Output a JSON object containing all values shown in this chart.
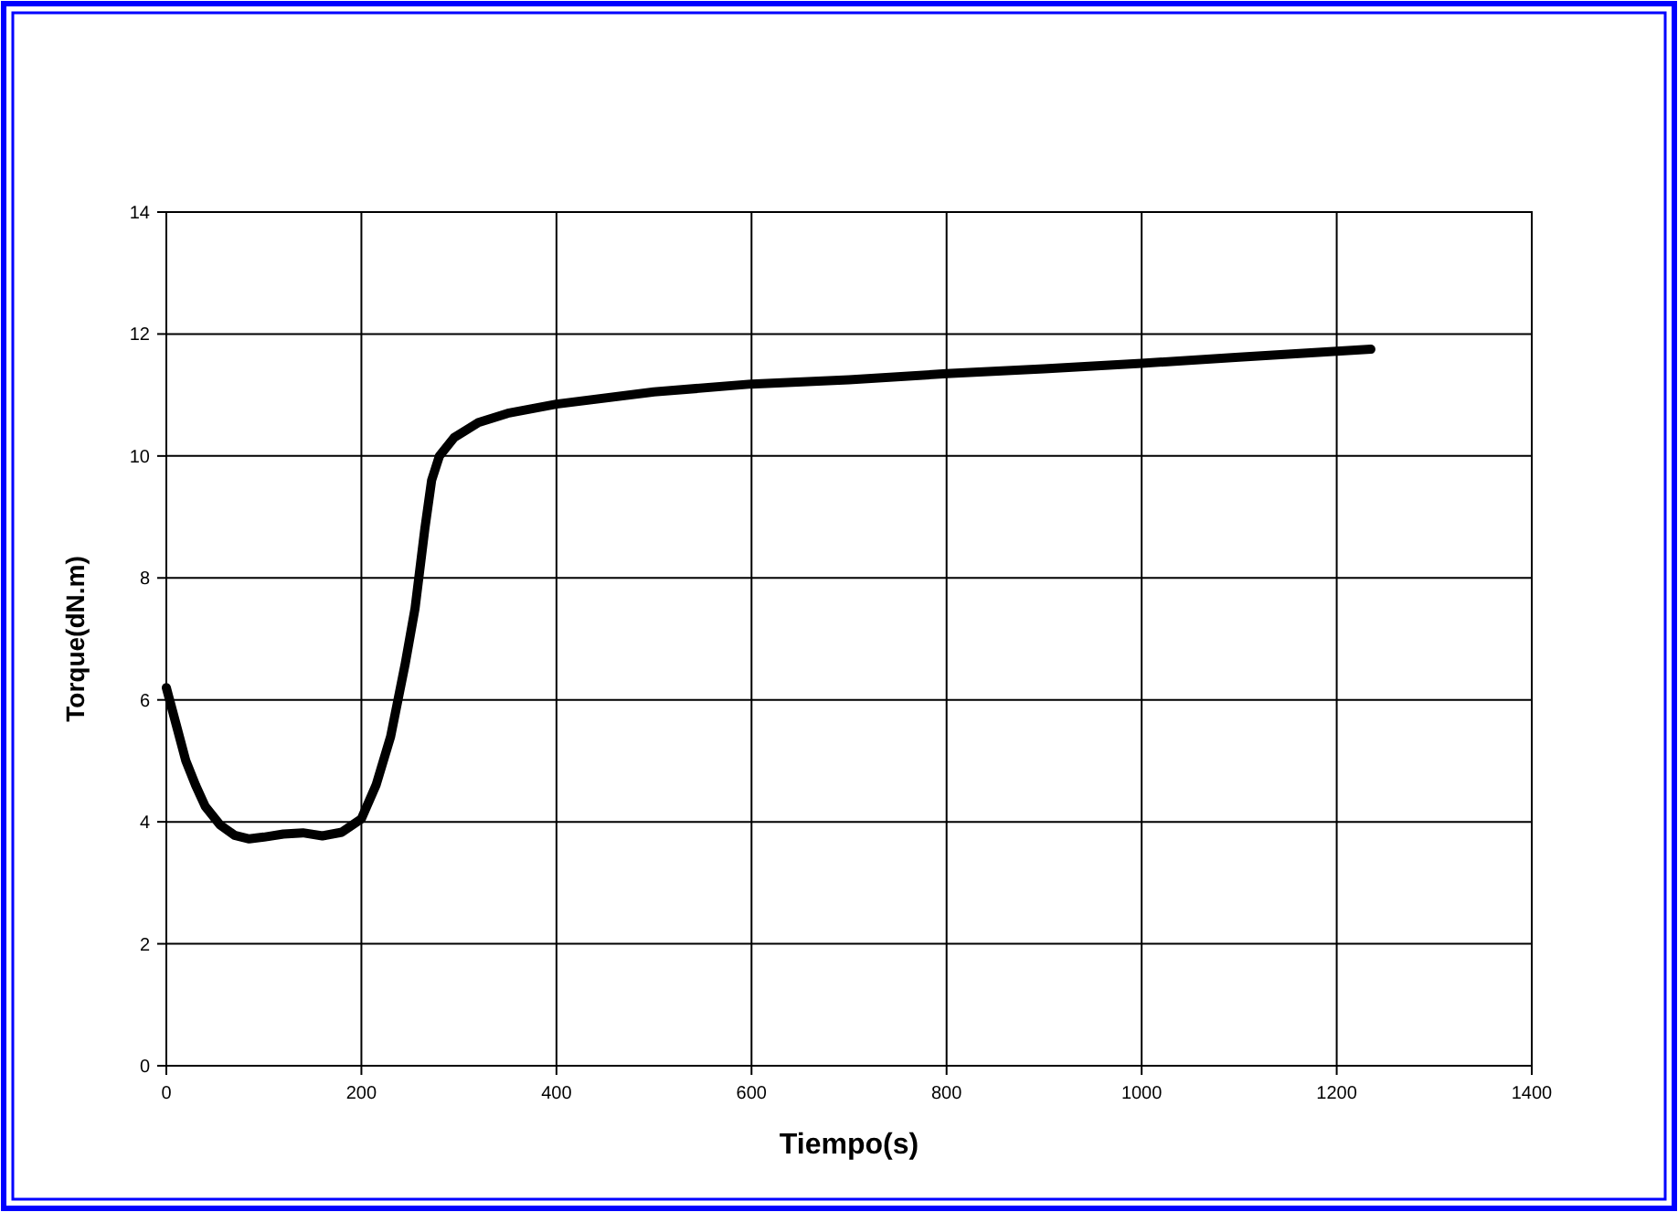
{
  "chart_data": {
    "type": "line",
    "xlabel": "Tiempo(s)",
    "ylabel": "Torque(dN.m)",
    "x": [
      0,
      10,
      20,
      30,
      40,
      55,
      70,
      85,
      100,
      120,
      140,
      160,
      180,
      200,
      215,
      230,
      245,
      255,
      265,
      272,
      280,
      295,
      320,
      350,
      400,
      500,
      600,
      700,
      800,
      900,
      1000,
      1100,
      1235
    ],
    "series": [
      {
        "color": "#000000",
        "values": [
          6.2,
          5.6,
          5.0,
          4.6,
          4.25,
          3.95,
          3.78,
          3.72,
          3.75,
          3.8,
          3.82,
          3.77,
          3.83,
          4.05,
          4.6,
          5.4,
          6.6,
          7.5,
          8.8,
          9.6,
          10.0,
          10.3,
          10.55,
          10.7,
          10.85,
          11.05,
          11.18,
          11.25,
          11.35,
          11.43,
          11.52,
          11.62,
          11.75
        ]
      }
    ],
    "xlim": [
      0,
      1400
    ],
    "xticks": [
      0,
      200,
      400,
      600,
      800,
      1000,
      1200,
      1400
    ],
    "ylim": [
      0,
      14
    ],
    "yticks": [
      0,
      2,
      4,
      6,
      8,
      10,
      12,
      14
    ],
    "grid": true,
    "marker": "none",
    "line_style": "solid"
  }
}
